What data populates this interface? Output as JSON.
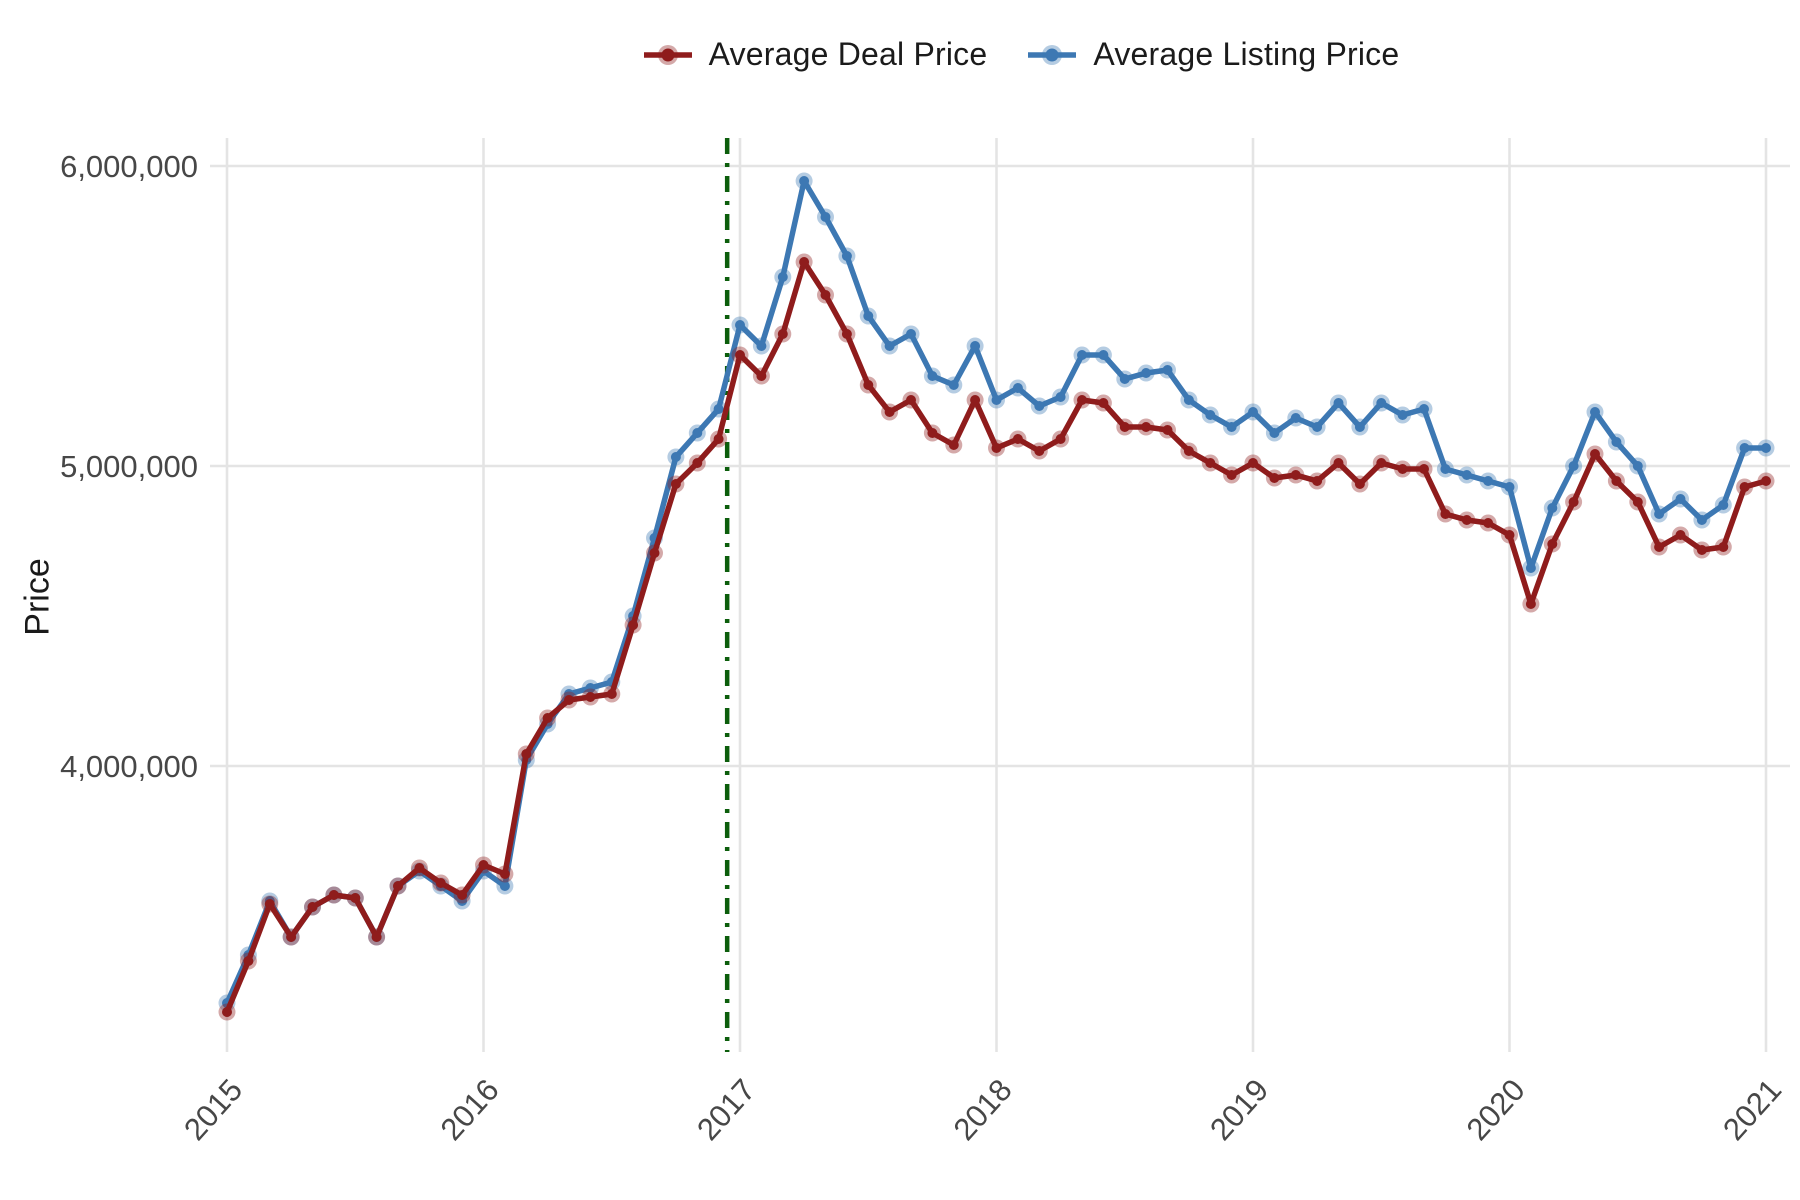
{
  "chart_data": {
    "type": "line",
    "title": "",
    "ylabel": "Price",
    "xlabel": "",
    "x_unit": "month",
    "x_start": "2015-01",
    "x_end": "2021-01",
    "n_points": 73,
    "x_tick_years": [
      2015,
      2016,
      2017,
      2018,
      2019,
      2020,
      2021
    ],
    "x_tick_labels": [
      "2015",
      "2016",
      "2017",
      "2018",
      "2019",
      "2020",
      "2021"
    ],
    "y_ticks": [
      4000000,
      5000000,
      6000000
    ],
    "y_tick_labels": [
      "4,000,000",
      "5,000,000",
      "6,000,000"
    ],
    "ylim": [
      3040000,
      6090000
    ],
    "xlim": [
      2015,
      2021
    ],
    "grid": "major",
    "gridline_color": "#e4e4e4",
    "tick_label_color": "#474747",
    "legend_position": "top",
    "vline": {
      "x": 2016.95,
      "color": "#0c5e0c",
      "style": "dash-dot"
    },
    "series": [
      {
        "name": "Average Deal Price",
        "color": "#8f1c1c",
        "values": [
          3180000,
          3350000,
          3540000,
          3430000,
          3530000,
          3570000,
          3560000,
          3430000,
          3600000,
          3660000,
          3610000,
          3570000,
          3670000,
          3640000,
          4040000,
          4160000,
          4220000,
          4230000,
          4240000,
          4470000,
          4710000,
          4940000,
          5010000,
          5090000,
          5370000,
          5300000,
          5440000,
          5680000,
          5570000,
          5440000,
          5270000,
          5180000,
          5220000,
          5110000,
          5070000,
          5220000,
          5060000,
          5090000,
          5050000,
          5090000,
          5220000,
          5210000,
          5130000,
          5130000,
          5120000,
          5050000,
          5010000,
          4970000,
          5010000,
          4960000,
          4970000,
          4950000,
          5010000,
          4940000,
          5010000,
          4990000,
          4990000,
          4840000,
          4820000,
          4810000,
          4770000,
          4540000,
          4740000,
          4880000,
          5040000,
          4950000,
          4880000,
          4730000,
          4770000,
          4720000,
          4730000,
          4930000,
          4950000
        ]
      },
      {
        "name": "Average Listing Price",
        "color": "#3d78b3",
        "values": [
          3210000,
          3370000,
          3550000,
          3430000,
          3530000,
          3570000,
          3560000,
          3430000,
          3600000,
          3650000,
          3600000,
          3550000,
          3650000,
          3600000,
          4020000,
          4140000,
          4240000,
          4260000,
          4280000,
          4500000,
          4760000,
          5030000,
          5110000,
          5190000,
          5470000,
          5400000,
          5630000,
          5950000,
          5830000,
          5700000,
          5500000,
          5400000,
          5440000,
          5300000,
          5270000,
          5400000,
          5220000,
          5260000,
          5200000,
          5230000,
          5370000,
          5370000,
          5290000,
          5310000,
          5320000,
          5220000,
          5170000,
          5130000,
          5180000,
          5110000,
          5160000,
          5130000,
          5210000,
          5130000,
          5210000,
          5170000,
          5190000,
          4990000,
          4970000,
          4950000,
          4930000,
          4660000,
          4860000,
          5000000,
          5180000,
          5080000,
          5000000,
          4840000,
          4890000,
          4820000,
          4870000,
          5060000,
          5060000
        ]
      }
    ]
  }
}
